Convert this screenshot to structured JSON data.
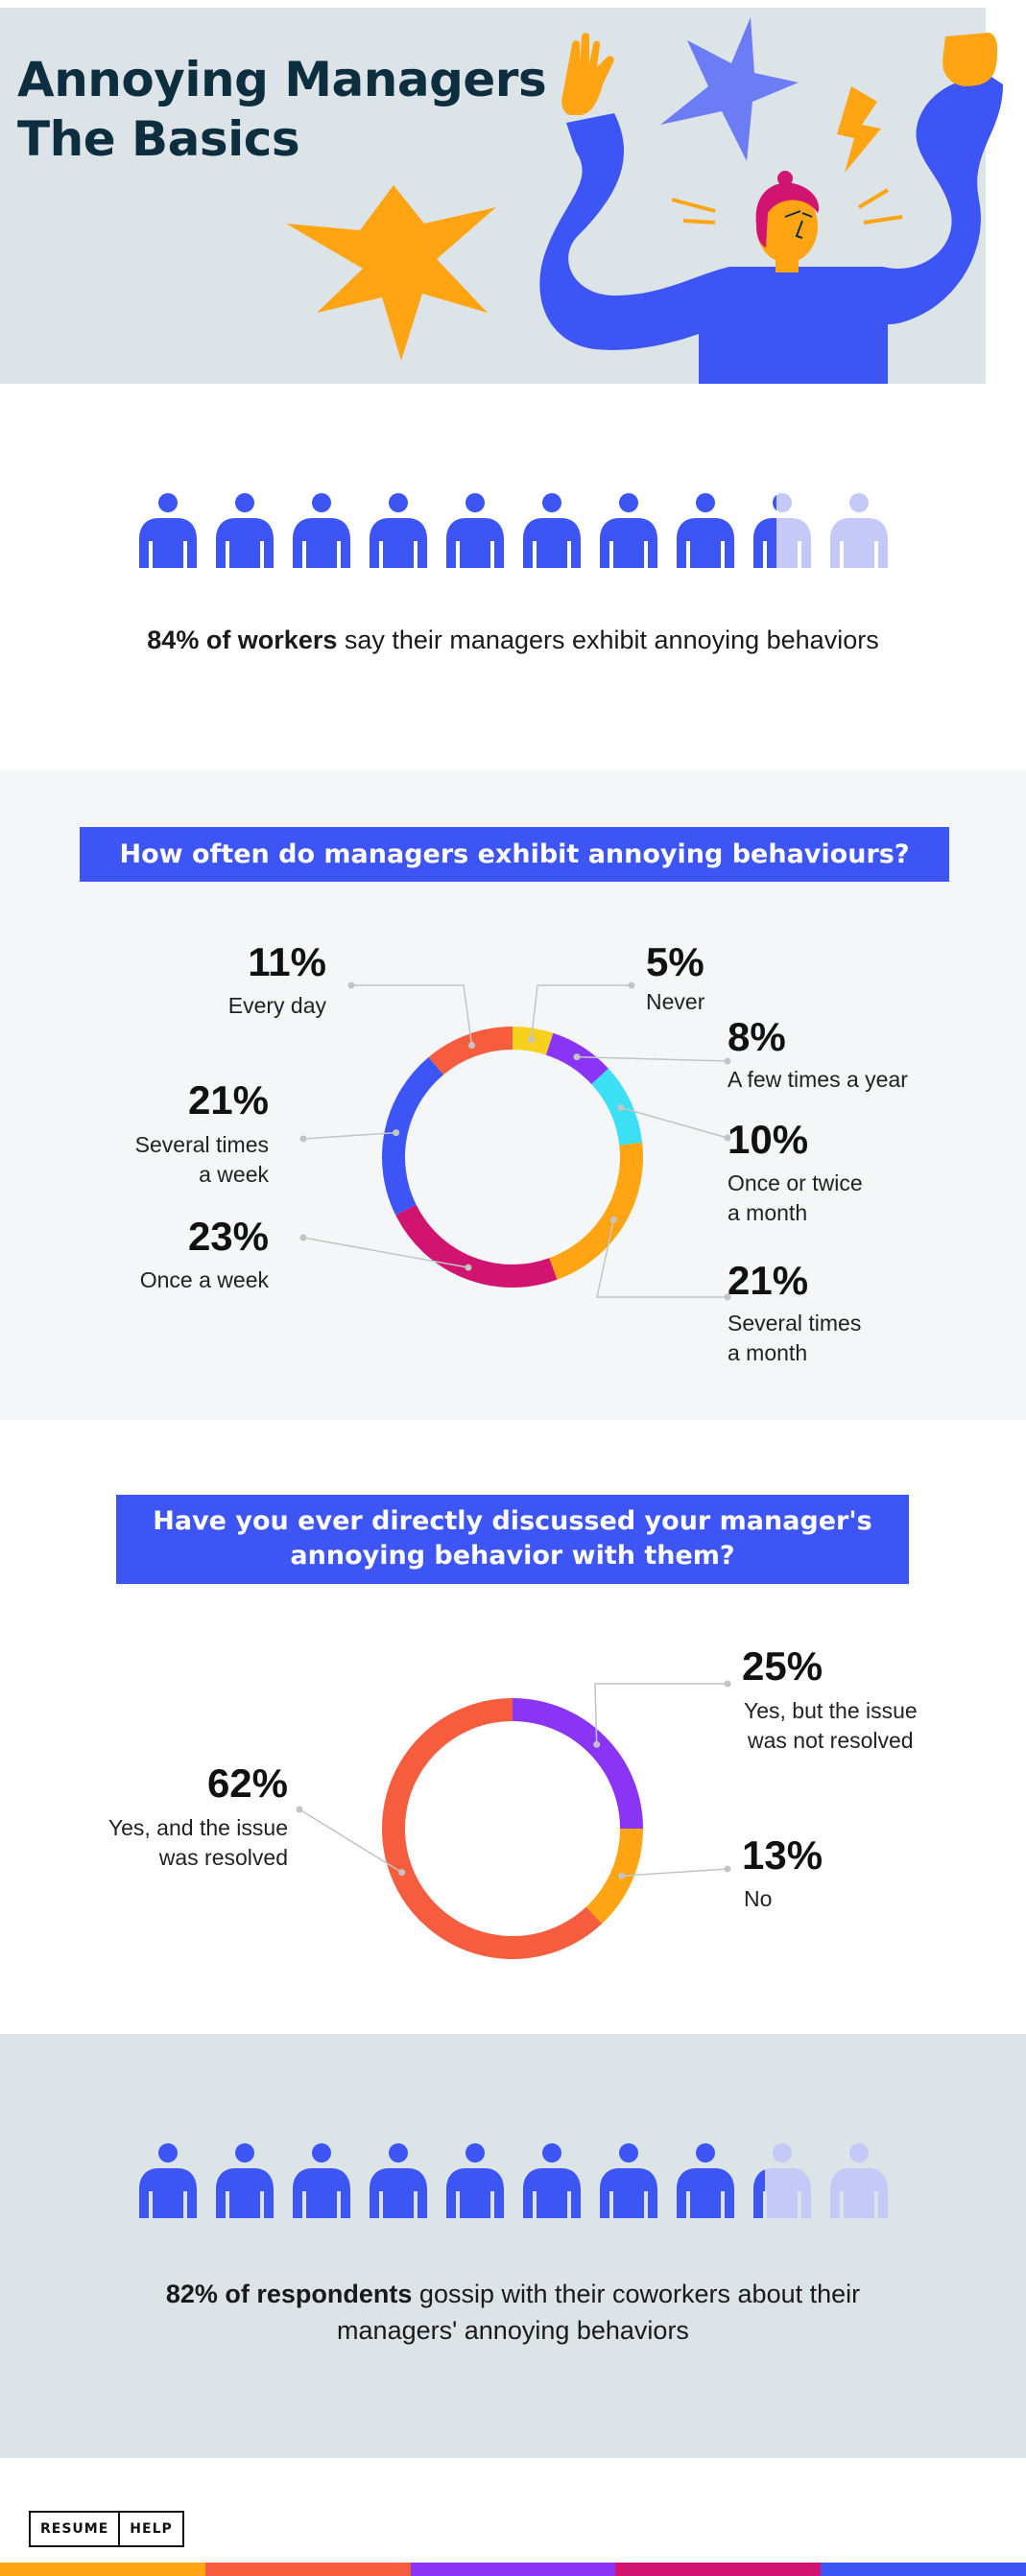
{
  "hero": {
    "title_line1": "Annoying Managers",
    "title_line2": "The Basics"
  },
  "stat1": {
    "icon": "person-icon",
    "highlight": "84% of workers",
    "rest": " say their managers exhibit annoying behaviors",
    "fraction": 0.84
  },
  "chart_data": [
    {
      "type": "pie",
      "title": "How often do managers exhibit annoying behaviours?",
      "categories": [
        "Never",
        "A few times a year",
        "Once or twice a month",
        "Several times a month",
        "Once a week",
        "Several times a week",
        "Every day"
      ],
      "values": [
        5,
        8,
        10,
        21,
        23,
        21,
        11
      ],
      "value_labels": [
        "5%",
        "8%",
        "10%",
        "21%",
        "23%",
        "21%",
        "11%"
      ],
      "label_lines": [
        [
          "Never"
        ],
        [
          "A few times a year"
        ],
        [
          "Once or twice",
          "a month"
        ],
        [
          "Several times",
          "a month"
        ],
        [
          "Once a week"
        ],
        [
          "Several times",
          "a week"
        ],
        [
          "Every day"
        ]
      ],
      "colors": [
        "#f7d11e",
        "#8a34f5",
        "#3be0f5",
        "#ffa412",
        "#d0146f",
        "#3d55f5",
        "#f55d3e"
      ]
    },
    {
      "type": "pie",
      "title": "Have you ever directly discussed your manager's annoying behavior with them?",
      "title_lines": [
        "Have you ever directly discussed your manager's",
        "annoying behavior with them?"
      ],
      "categories": [
        "Yes, but the issue was not resolved",
        "No",
        "Yes, and the issue was resolved"
      ],
      "values": [
        25,
        13,
        62
      ],
      "value_labels": [
        "25%",
        "13%",
        "62%"
      ],
      "label_lines": [
        [
          "Yes, but the issue",
          "was not resolved"
        ],
        [
          "No"
        ],
        [
          "Yes, and the issue",
          "was resolved"
        ]
      ],
      "colors": [
        "#8a34f5",
        "#ffa412",
        "#f55d3e"
      ]
    }
  ],
  "stat2": {
    "icon": "person-icon",
    "highlight": "82% of respondents",
    "rest_line1": " gossip with their coworkers about their",
    "rest_line2": "managers' annoying behaviors",
    "fraction": 0.82
  },
  "footer": {
    "logo_left": "RESUME",
    "logo_right": "HELP",
    "bar_colors": [
      "#ffa412",
      "#f55d3e",
      "#8a34f5",
      "#d0146f",
      "#3d55f5"
    ]
  },
  "colors": {
    "person_full": "#3d55f5",
    "person_empty": "#c4c9f7",
    "accent_banner": "#3d55f5",
    "hero_bg": "#dde4e8"
  }
}
